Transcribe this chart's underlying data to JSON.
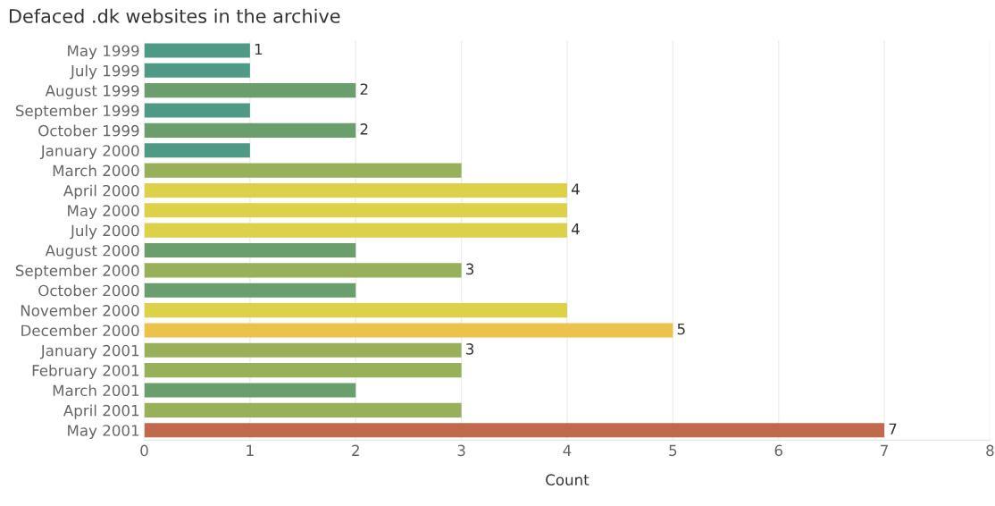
{
  "chart_data": {
    "type": "bar",
    "orientation": "horizontal",
    "title": "Defaced .dk websites in the archive",
    "xlabel": "Count",
    "categories": [
      "May 1999",
      "July 1999",
      "August 1999",
      "September 1999",
      "October 1999",
      "January 2000",
      "March 2000",
      "April 2000",
      "May 2000",
      "July 2000",
      "August 2000",
      "September 2000",
      "October 2000",
      "November 2000",
      "December 2000",
      "January 2001",
      "February 2001",
      "March 2001",
      "April 2001",
      "May 2001"
    ],
    "values": [
      1,
      1,
      2,
      1,
      2,
      1,
      3,
      4,
      4,
      4,
      2,
      3,
      2,
      4,
      5,
      3,
      3,
      2,
      3,
      7
    ],
    "colors": [
      "#4e9a87",
      "#4e9a87",
      "#6a9e6c",
      "#4e9a87",
      "#6a9e6c",
      "#4e9a87",
      "#98b05a",
      "#dcd148",
      "#dcd148",
      "#dcd148",
      "#6a9e6c",
      "#98b05a",
      "#6a9e6c",
      "#dcd148",
      "#ebc24a",
      "#98b05a",
      "#98b05a",
      "#6a9e6c",
      "#98b05a",
      "#c0694c"
    ],
    "value_labels": [
      "1",
      null,
      "2",
      null,
      "2",
      null,
      null,
      "4",
      null,
      "4",
      null,
      "3",
      null,
      null,
      "5",
      "3",
      null,
      null,
      null,
      "7"
    ],
    "xlim": [
      0,
      8
    ],
    "xticks": [
      0,
      1,
      2,
      3,
      4,
      5,
      6,
      7,
      8
    ],
    "grid": "x"
  }
}
